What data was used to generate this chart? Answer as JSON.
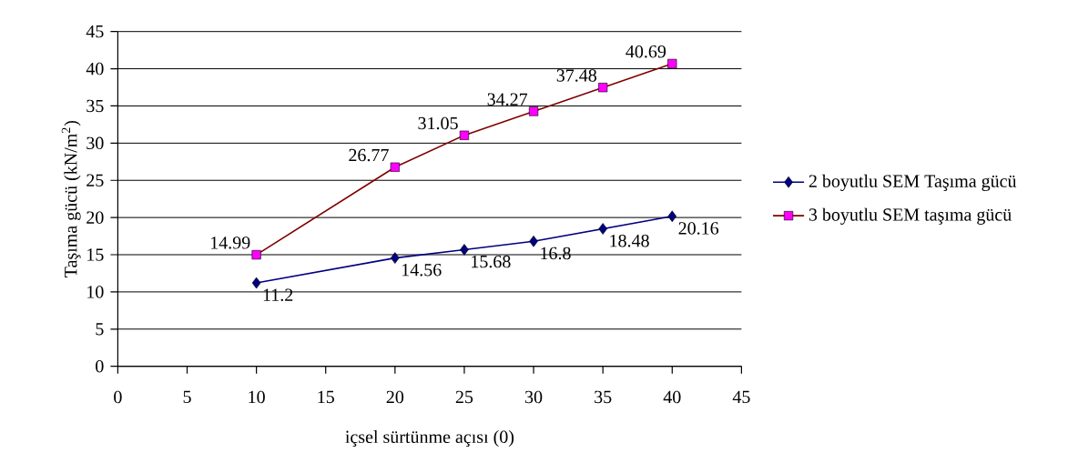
{
  "chart_data": {
    "type": "line",
    "xlabel": "içsel sürtünme açısı (0)",
    "ylabel": "Taşıma gücü (kN/m$^{2}$)",
    "xlim": [
      0,
      45
    ],
    "xticks": [
      0,
      5,
      10,
      15,
      20,
      25,
      30,
      35,
      40,
      45
    ],
    "ylim": [
      0,
      45
    ],
    "yticks": [
      0,
      5,
      10,
      15,
      20,
      25,
      30,
      35,
      40,
      45
    ],
    "grid": "y",
    "legend": "right",
    "data_labels": true,
    "series": [
      {
        "name": "2 boyutlu SEM Taşıma gücü",
        "color": "#000080",
        "marker": "diamond",
        "x": [
          10,
          20,
          25,
          30,
          35,
          40
        ],
        "values": [
          11.2,
          14.56,
          15.68,
          16.8,
          18.48,
          20.16
        ]
      },
      {
        "name": "3 boyutlu SEM taşıma gücü",
        "color": "#800000",
        "colors": [
          "#ff00ff",
          "#ff00ff",
          "#ff00ff",
          "#ff00ff",
          "#ff00ff",
          "#ff00ff"
        ],
        "marker": "square",
        "x": [
          10,
          20,
          25,
          30,
          35,
          40
        ],
        "values": [
          14.99,
          26.77,
          31.05,
          34.27,
          37.48,
          40.69
        ]
      }
    ]
  }
}
